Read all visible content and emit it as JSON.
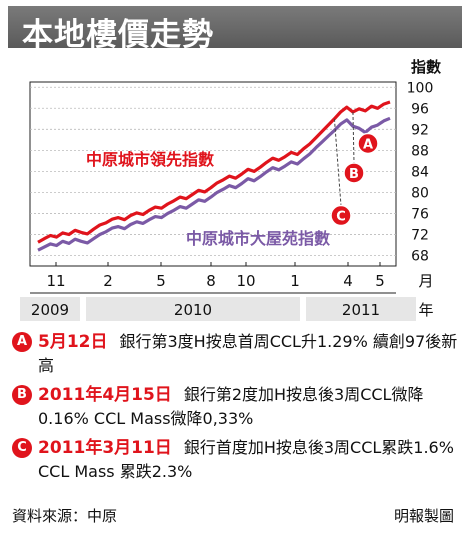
{
  "title": "本地樓價走勢",
  "chart_data": {
    "type": "line",
    "ylabel": "指數",
    "ylim": [
      66,
      101
    ],
    "yticks": [
      100,
      96,
      92,
      88,
      84,
      80,
      76,
      72,
      68
    ],
    "x_month_ticks": [
      "11",
      "2",
      "5",
      "8",
      "10",
      "1",
      "4",
      "5"
    ],
    "x_month_unit": "月",
    "x_year_labels": [
      "2009",
      "2010",
      "2011"
    ],
    "x_year_unit": "年",
    "series": [
      {
        "name": "中原城市領先指數",
        "color": "#e0141c",
        "values": [
          70.5,
          71.2,
          71.8,
          71.5,
          72.3,
          72.0,
          72.8,
          72.4,
          72.1,
          73.0,
          73.8,
          74.2,
          74.9,
          75.2,
          74.8,
          75.6,
          76.1,
          75.8,
          76.6,
          77.2,
          77.0,
          77.8,
          78.4,
          79.1,
          78.8,
          79.6,
          80.4,
          80.1,
          80.9,
          81.8,
          82.4,
          83.1,
          82.7,
          83.5,
          84.4,
          84.0,
          84.8,
          85.7,
          86.5,
          86.1,
          86.8,
          87.6,
          87.2,
          88.3,
          89.2,
          90.4,
          91.6,
          92.8,
          94.0,
          95.3,
          96.2,
          95.3,
          95.9,
          95.5,
          96.4,
          96.0,
          96.8,
          97.2
        ]
      },
      {
        "name": "中原城市大屋苑指數",
        "color": "#7b5aa6",
        "values": [
          69.0,
          69.6,
          70.2,
          69.9,
          70.7,
          70.3,
          71.1,
          70.7,
          70.4,
          71.2,
          72.0,
          72.5,
          73.2,
          73.5,
          73.1,
          73.9,
          74.4,
          74.1,
          74.8,
          75.4,
          75.2,
          76.0,
          76.6,
          77.3,
          77.0,
          77.8,
          78.6,
          78.3,
          79.1,
          80.0,
          80.6,
          81.3,
          80.9,
          81.7,
          82.6,
          82.2,
          83.0,
          83.9,
          84.7,
          84.3,
          85.0,
          85.8,
          85.4,
          86.4,
          87.3,
          88.5,
          89.6,
          90.7,
          91.8,
          93.0,
          93.8,
          92.6,
          92.2,
          91.4,
          92.4,
          92.8,
          93.6,
          94.1
        ]
      }
    ],
    "annotations": [
      {
        "label": "A",
        "series_index": 0,
        "point_index": 57
      },
      {
        "label": "B",
        "series_index": 0,
        "point_index": 51
      },
      {
        "label": "C",
        "series_index": 0,
        "point_index": 48
      }
    ],
    "grid": true
  },
  "notes": [
    {
      "badge": "A",
      "date": "5月12日",
      "text": "銀行第3度H按息首周CCL升1.29% 續創97後新高"
    },
    {
      "badge": "B",
      "date": "2011年4月15日",
      "text": "銀行第2度加H按息後3周CCL微降0.16% CCL Mass微降0,33%"
    },
    {
      "badge": "C",
      "date": "2011年3月11日",
      "text": "銀行首度加H按息後3周CCL累跌1.6% CCL Mass 累跌2.3%"
    }
  ],
  "footer": {
    "source": "資料來源：中原",
    "credit": "明報製圖"
  }
}
